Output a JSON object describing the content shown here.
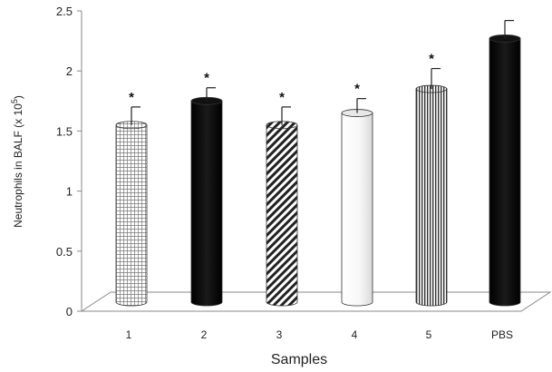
{
  "chart_data": {
    "type": "bar",
    "categories": [
      "1",
      "2",
      "3",
      "4",
      "5",
      "PBS"
    ],
    "values": [
      1.55,
      1.75,
      1.55,
      1.65,
      1.85,
      2.27
    ],
    "errors": [
      0.15,
      0.11,
      0.15,
      0.12,
      0.17,
      0.15
    ],
    "significance": [
      "*",
      "*",
      "*",
      "*",
      "*",
      ""
    ],
    "patterns": [
      "grid",
      "solid-black",
      "diagonal",
      "white",
      "vertical",
      "solid-black"
    ],
    "xlabel": "Samples",
    "ylabel": "Neutrophils in BALF (x 10",
    "ylabel_sup": "5",
    "ylabel_close": ")",
    "ylim": [
      0,
      2.5
    ],
    "yticks": [
      "0",
      "0.5",
      "1",
      "1.5",
      "2",
      "2.5"
    ],
    "colors": {
      "axis": "#888888",
      "bar_dark": "#0a0a0a",
      "ink": "#222222"
    }
  }
}
